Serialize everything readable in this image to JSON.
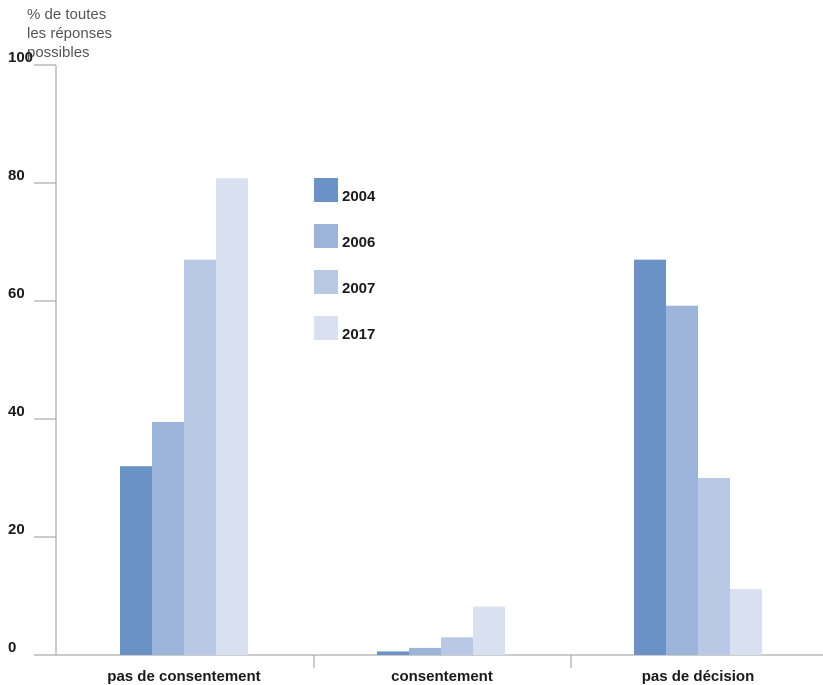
{
  "chart_data": {
    "type": "bar",
    "title": "",
    "ylabel_lines": [
      "% de toutes",
      "les réponses",
      "possibles"
    ],
    "xlabel": "",
    "ylim": [
      0,
      100
    ],
    "yticks": [
      0,
      20,
      40,
      60,
      80,
      100
    ],
    "grid": false,
    "legend_position": "center-top",
    "categories": [
      "pas de consentement",
      "consentement",
      "pas de décision"
    ],
    "series": [
      {
        "name": "2004",
        "color": "#6a92c4",
        "values": [
          32,
          0.6,
          67
        ]
      },
      {
        "name": "2006",
        "color": "#9cb3da",
        "values": [
          39.5,
          1.2,
          59.2
        ]
      },
      {
        "name": "2007",
        "color": "#b9c9e5",
        "values": [
          67,
          3,
          30
        ]
      },
      {
        "name": "2017",
        "color": "#d9e0f0",
        "values": [
          80.8,
          8.2,
          11.2
        ]
      }
    ]
  }
}
